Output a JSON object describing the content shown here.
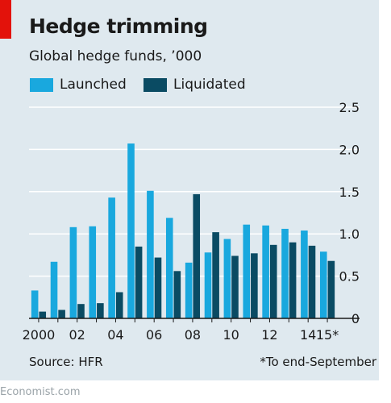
{
  "header": {
    "title": "Hedge trimming",
    "subtitle": "Global hedge funds, ’000"
  },
  "footer": {
    "source": "Source: HFR",
    "footnote": "*To end-September",
    "credit": "Economist.com"
  },
  "colors": {
    "panel": "#dfe9ef",
    "accent": "#e3120b",
    "launched": "#19a8de",
    "liquidated": "#0a4b63",
    "grid": "#ffffff",
    "axis": "#1a1a1a"
  },
  "chart_data": {
    "type": "bar",
    "title": "Hedge trimming",
    "subtitle": "Global hedge funds, ’000",
    "categories": [
      "2000",
      "2001",
      "2002",
      "2003",
      "2004",
      "2005",
      "2006",
      "2007",
      "2008",
      "2009",
      "2010",
      "2011",
      "2012",
      "2013",
      "2014",
      "2015*"
    ],
    "tick_labels": [
      "2000",
      "",
      "02",
      "",
      "04",
      "",
      "06",
      "",
      "08",
      "",
      "10",
      "",
      "12",
      "",
      "14",
      "15*"
    ],
    "series": [
      {
        "name": "Launched",
        "color": "#19a8de",
        "values": [
          0.33,
          0.67,
          1.08,
          1.09,
          1.43,
          2.07,
          1.51,
          1.19,
          0.66,
          0.78,
          0.94,
          1.11,
          1.1,
          1.06,
          1.04,
          0.79
        ]
      },
      {
        "name": "Liquidated",
        "color": "#0a4b63",
        "values": [
          0.08,
          0.1,
          0.17,
          0.18,
          0.31,
          0.85,
          0.72,
          0.56,
          1.47,
          1.02,
          0.74,
          0.77,
          0.87,
          0.9,
          0.86,
          0.68
        ]
      }
    ],
    "yticks": [
      "0",
      "0.5",
      "1.0",
      "1.5",
      "2.0",
      "2.5"
    ],
    "ylim": [
      0,
      2.5
    ],
    "yaxis_side": "right",
    "grid": true,
    "legend": "top-left"
  }
}
